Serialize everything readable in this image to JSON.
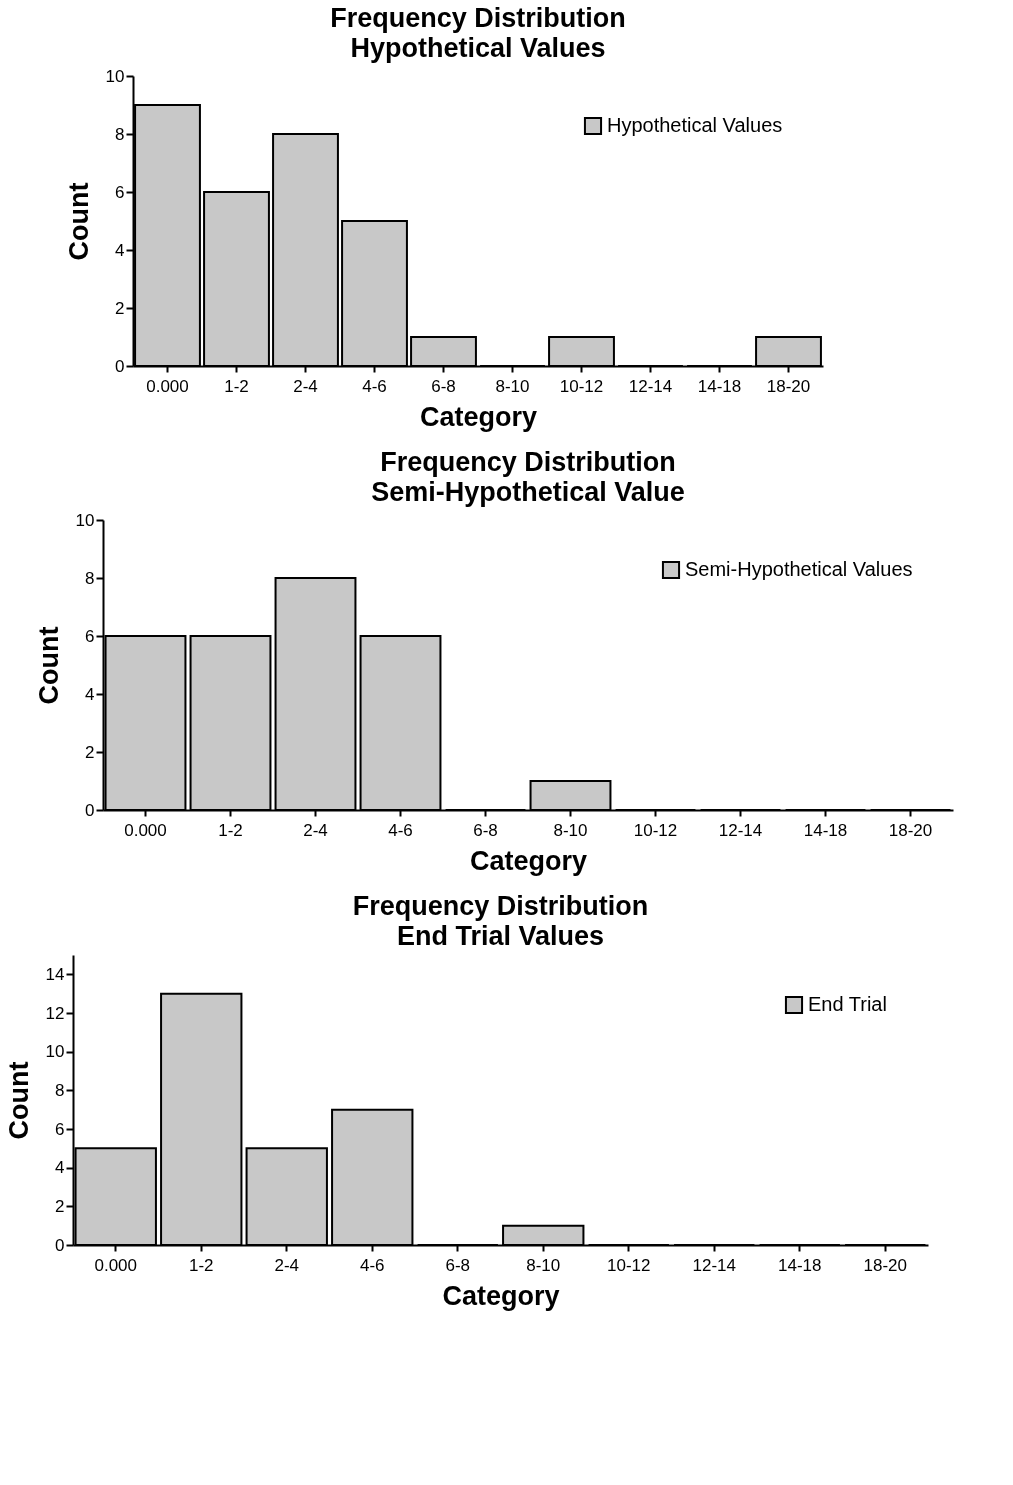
{
  "chart_data": [
    {
      "type": "bar",
      "title": "Frequency Distribution",
      "subtitle": "Hypothetical Values",
      "xlabel": "Category",
      "ylabel": "Count",
      "categories": [
        "0.000",
        "1-2",
        "2-4",
        "4-6",
        "6-8",
        "8-10",
        "10-12",
        "12-14",
        "14-18",
        "18-20"
      ],
      "series": [
        {
          "name": "Hypothetical Values",
          "color": "#c8c8c8",
          "values": [
            9,
            6,
            8,
            5,
            1,
            0,
            1,
            0,
            0,
            1
          ]
        }
      ],
      "ylim": [
        0,
        10
      ],
      "yticks": [
        0,
        2,
        4,
        6,
        8,
        10
      ],
      "grid": false,
      "legend": "top right"
    },
    {
      "type": "bar",
      "title": "Frequency Distribution",
      "subtitle": "Semi-Hypothetical Value",
      "xlabel": "Category",
      "ylabel": "Count",
      "categories": [
        "0.000",
        "1-2",
        "2-4",
        "4-6",
        "6-8",
        "8-10",
        "10-12",
        "12-14",
        "14-18",
        "18-20"
      ],
      "series": [
        {
          "name": "Semi-Hypothetical Values",
          "color": "#c8c8c8",
          "values": [
            6,
            6,
            8,
            6,
            0,
            1,
            0,
            0,
            0,
            0
          ]
        }
      ],
      "ylim": [
        0,
        10
      ],
      "yticks": [
        0,
        2,
        4,
        6,
        8,
        10
      ],
      "grid": false,
      "legend": "top right"
    },
    {
      "type": "bar",
      "title": "Frequency Distribution",
      "subtitle": "End Trial Values",
      "xlabel": "Category",
      "ylabel": "Count",
      "categories": [
        "0.000",
        "1-2",
        "2-4",
        "4-6",
        "6-8",
        "8-10",
        "10-12",
        "12-14",
        "14-18",
        "18-20"
      ],
      "series": [
        {
          "name": "End Trial",
          "color": "#c8c8c8",
          "values": [
            5,
            13,
            5,
            7,
            0,
            1,
            0,
            0,
            0,
            0
          ]
        }
      ],
      "ylim": [
        0,
        15
      ],
      "yticks": [
        0,
        2,
        4,
        6,
        8,
        10,
        12,
        14
      ],
      "grid": false,
      "legend": "top right"
    }
  ]
}
